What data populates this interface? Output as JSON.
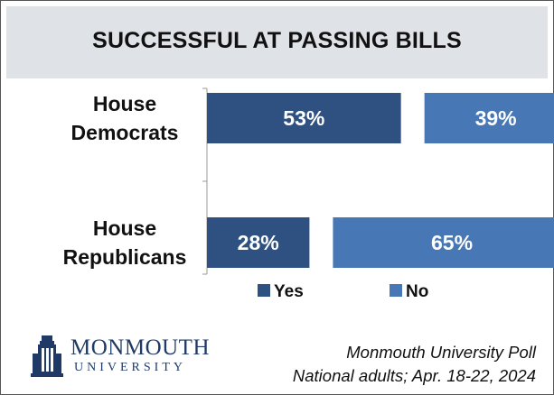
{
  "chart_data": {
    "type": "bar",
    "orientation": "horizontal",
    "stacked": true,
    "title": "SUCCESSFUL AT PASSING BILLS",
    "categories": [
      "House Democrats",
      "House Republicans"
    ],
    "category_lines": [
      [
        "House",
        "Democrats"
      ],
      [
        "House",
        "Republicans"
      ]
    ],
    "series": [
      {
        "name": "Yes",
        "values": [
          53,
          28
        ],
        "labels": [
          "53%",
          "28%"
        ],
        "color": "#2e5181"
      },
      {
        "name": "No",
        "values": [
          39,
          65
        ],
        "labels": [
          "39%",
          "65%"
        ],
        "color": "#4777b4"
      }
    ],
    "unit": "%",
    "legend_position": "bottom",
    "grid": false
  },
  "footer": {
    "line1": "Monmouth University Poll",
    "line2": "National adults; Apr. 18-22, 2024"
  },
  "logo": {
    "name": "MONMOUTH",
    "subtitle": "UNIVERSITY"
  },
  "colors": {
    "header_bg": "#dfe2e6",
    "yes": "#2e5181",
    "no": "#4777b4"
  }
}
